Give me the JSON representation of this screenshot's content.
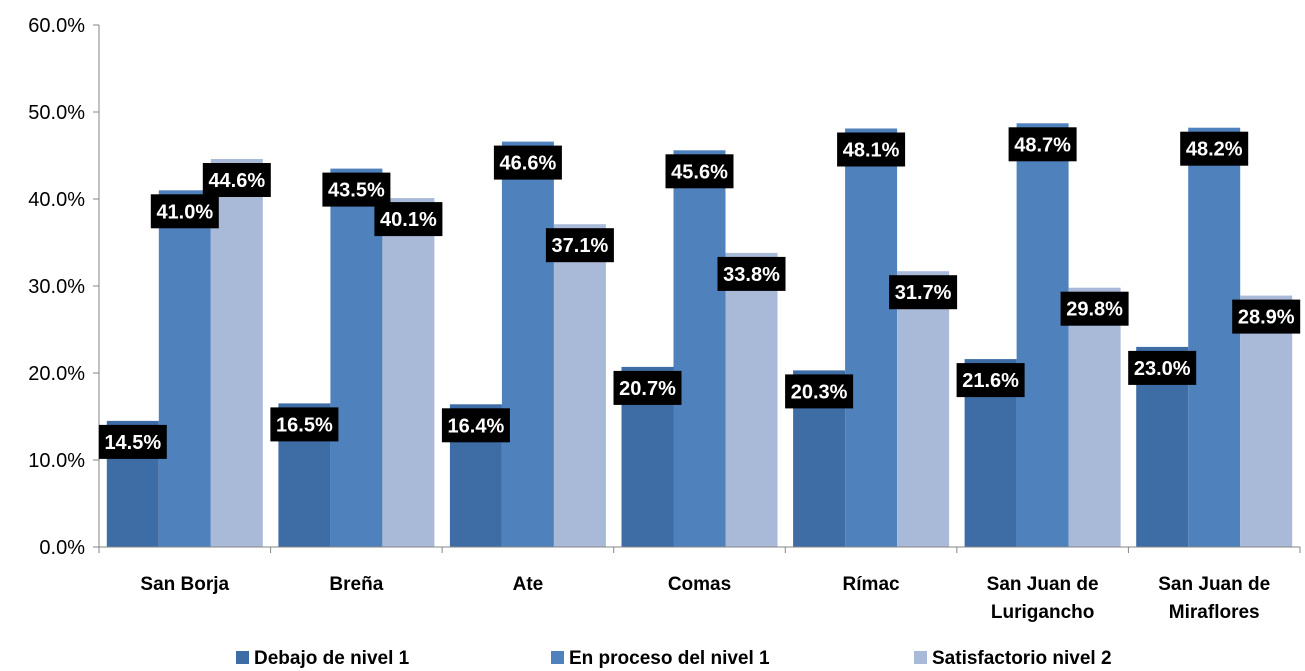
{
  "chart_data": {
    "type": "bar",
    "title": "",
    "xlabel": "",
    "ylabel": "",
    "ylim": [
      0,
      60
    ],
    "yticks": [
      "0.0%",
      "10.0%",
      "20.0%",
      "30.0%",
      "40.0%",
      "50.0%",
      "60.0%"
    ],
    "grid": false,
    "legend_position": "bottom",
    "categories": [
      [
        "San Borja"
      ],
      [
        "Breña"
      ],
      [
        "Ate"
      ],
      [
        "Comas"
      ],
      [
        "Rímac"
      ],
      [
        "San Juan de",
        "Lurigancho"
      ],
      [
        "San Juan de",
        "Miraflores"
      ]
    ],
    "series": [
      {
        "name": "Debajo de nivel 1",
        "color": "#3e6ca4",
        "values": [
          14.5,
          16.5,
          16.4,
          20.7,
          20.3,
          21.6,
          23.0
        ],
        "labels": [
          "14.5%",
          "16.5%",
          "16.4%",
          "20.7%",
          "20.3%",
          "21.6%",
          "23.0%"
        ]
      },
      {
        "name": "En proceso del nivel 1",
        "color": "#4f81bd",
        "values": [
          41.0,
          43.5,
          46.6,
          45.6,
          48.1,
          48.7,
          48.2
        ],
        "labels": [
          "41.0%",
          "43.5%",
          "46.6%",
          "45.6%",
          "48.1%",
          "48.7%",
          "48.2%"
        ]
      },
      {
        "name": "Satisfactorio nivel 2",
        "color": "#a9b9d8",
        "values": [
          44.6,
          40.1,
          37.1,
          33.8,
          31.7,
          29.8,
          28.9
        ],
        "labels": [
          "44.6%",
          "40.1%",
          "37.1%",
          "33.8%",
          "31.7%",
          "29.8%",
          "28.9%"
        ]
      }
    ]
  }
}
